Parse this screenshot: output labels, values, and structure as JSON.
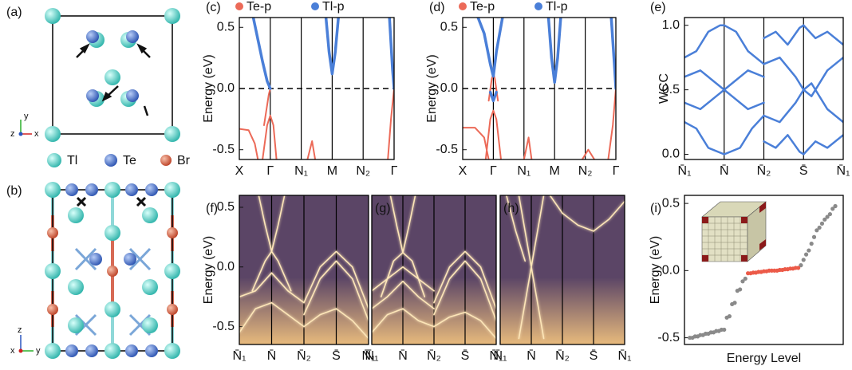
{
  "diagram": {
    "panel_a": {
      "label": "(a)",
      "axis_labels": [
        "y",
        "z",
        "x"
      ]
    },
    "species": [
      "Tl",
      "Te",
      "Br"
    ],
    "panel_b": {
      "label": "(b)",
      "axis_labels": [
        "z",
        "x",
        "y"
      ]
    }
  },
  "chart_data": [
    {
      "type": "line",
      "panel_label": "(c)",
      "ylabel": "Energy (eV)",
      "legend": "top",
      "xlim": [
        0,
        5
      ],
      "ylim": [
        -0.58,
        0.58
      ],
      "xticks": [
        {
          "value": 0,
          "label": "X"
        },
        {
          "value": 1,
          "label": "Γ"
        },
        {
          "value": 2,
          "label": "N₁"
        },
        {
          "value": 3,
          "label": "M"
        },
        {
          "value": 4,
          "label": "N₂"
        },
        {
          "value": 5,
          "label": "Γ"
        }
      ],
      "yticks": [
        0.5,
        {
          "value": 0,
          "label": "0.0"
        },
        -0.5
      ],
      "tick_lines": true,
      "fermi_level": 0,
      "series": [
        {
          "name": "Te-p",
          "color": "#ec6a58",
          "width": 2,
          "x": [
            0,
            0.3,
            0.5,
            0.6,
            null,
            0.75,
            0.9,
            1.0,
            1.1,
            1.2,
            null,
            0.8,
            0.95,
            1.0,
            null,
            2.2,
            2.35,
            2.45,
            null,
            4.8,
            4.9,
            5.0
          ],
          "values": [
            -0.33,
            -0.34,
            -0.45,
            -0.58,
            null,
            -0.58,
            -0.3,
            -0.22,
            -0.3,
            -0.58,
            null,
            -0.3,
            -0.05,
            0,
            null,
            -0.58,
            -0.43,
            -0.58,
            null,
            -0.58,
            -0.25,
            0
          ]
        },
        {
          "name": "Tl-p",
          "color": "#4a7fd8",
          "width": 3.5,
          "x": [
            0.45,
            0.6,
            0.75,
            0.9,
            1.0,
            null,
            2.8,
            2.9,
            3.0,
            3.1,
            3.2,
            null,
            4.85,
            4.95,
            5.0
          ],
          "values": [
            0.58,
            0.4,
            0.22,
            0.06,
            0,
            null,
            0.58,
            0.3,
            0.12,
            0.3,
            0.58,
            null,
            0.58,
            0.15,
            0
          ]
        }
      ]
    },
    {
      "type": "line",
      "panel_label": "(d)",
      "ylabel": "Energy (eV)",
      "legend": "top",
      "xlim": [
        0,
        5
      ],
      "ylim": [
        -0.58,
        0.58
      ],
      "xticks": [
        {
          "value": 0,
          "label": "X"
        },
        {
          "value": 1,
          "label": "Γ"
        },
        {
          "value": 2,
          "label": "N₁"
        },
        {
          "value": 3,
          "label": "M"
        },
        {
          "value": 4,
          "label": "N₂"
        },
        {
          "value": 5,
          "label": "Γ"
        }
      ],
      "yticks": [
        0.5,
        {
          "value": 0,
          "label": "0.0"
        },
        -0.5
      ],
      "tick_lines": true,
      "fermi_level": 0,
      "series": [
        {
          "name": "Te-p",
          "color": "#ec6a58",
          "width": 2,
          "x": [
            0,
            0.4,
            0.7,
            0.85,
            null,
            0.75,
            0.9,
            1.0,
            1.1,
            1.25,
            null,
            0.85,
            0.95,
            1.0,
            1.05,
            1.15,
            null,
            2.0,
            2.15,
            2.25,
            null,
            3.9,
            4.1,
            4.3,
            null,
            4.75,
            4.9,
            5.0
          ],
          "values": [
            -0.32,
            -0.32,
            -0.4,
            -0.58,
            null,
            -0.58,
            -0.25,
            -0.18,
            -0.25,
            -0.58,
            null,
            -0.1,
            0.08,
            0.12,
            0.08,
            -0.1,
            null,
            -0.58,
            -0.4,
            -0.58,
            null,
            -0.58,
            -0.5,
            -0.58,
            null,
            -0.58,
            -0.3,
            0
          ]
        },
        {
          "name": "Tl-p",
          "color": "#4a7fd8",
          "width": 3.5,
          "x": [
            0.5,
            0.7,
            0.9,
            1.0,
            1.1,
            1.3,
            null,
            0.9,
            1.0,
            1.1,
            null,
            2.8,
            2.9,
            3.0,
            3.1,
            3.2,
            null,
            4.85,
            4.95,
            5.0
          ],
          "values": [
            0.58,
            0.45,
            0.2,
            0.1,
            0.3,
            0.58,
            null,
            -0.03,
            -0.1,
            -0.03,
            null,
            0.58,
            0.25,
            0.05,
            0.25,
            0.58,
            null,
            0.58,
            0.2,
            0
          ]
        }
      ]
    },
    {
      "type": "line",
      "panel_label": "(e)",
      "ylabel": "WCC",
      "xlim": [
        0,
        4
      ],
      "ylim": [
        -0.04,
        1.06
      ],
      "xticks": [
        {
          "value": 0,
          "label": "N̄₁"
        },
        {
          "value": 1,
          "label": "N̄"
        },
        {
          "value": 2,
          "label": "N̄₂"
        },
        {
          "value": 3,
          "label": "S̄"
        },
        {
          "value": 4,
          "label": "N̄₁"
        }
      ],
      "yticks": [
        {
          "value": 1,
          "label": "1.0"
        },
        0.5,
        {
          "value": 0,
          "label": "0.0"
        }
      ],
      "tick_lines": true,
      "color": "#4a7fd8",
      "width": 2.5,
      "x": [
        0,
        0.3,
        0.6,
        0.9,
        1.0,
        1.3,
        1.6,
        2.0,
        null,
        0,
        0.3,
        0.6,
        1.0,
        1.4,
        1.7,
        2.0,
        null,
        0,
        0.4,
        0.8,
        1.0,
        1.2,
        1.6,
        2.0,
        null,
        0,
        0.4,
        0.8,
        1.0,
        1.2,
        1.6,
        2.0,
        null,
        2,
        2.4,
        2.8,
        3.0,
        3.2,
        3.6,
        4.0,
        null,
        2,
        2.4,
        2.8,
        3.0,
        3.2,
        3.6,
        4.0,
        null,
        2,
        2.3,
        2.6,
        2.9,
        3.0,
        3.3,
        3.6,
        4.0,
        null,
        2,
        2.3,
        2.6,
        2.9,
        3.0,
        3.3,
        3.6,
        4.0
      ],
      "values": [
        0.75,
        0.8,
        0.95,
        1.0,
        1.0,
        0.95,
        0.8,
        0.7,
        null,
        0.25,
        0.2,
        0.05,
        0,
        0.05,
        0.2,
        0.3,
        null,
        0.6,
        0.65,
        0.55,
        0.5,
        0.45,
        0.35,
        0.4,
        null,
        0.4,
        0.35,
        0.45,
        0.5,
        0.55,
        0.65,
        0.6,
        null,
        0.7,
        0.75,
        0.6,
        0.5,
        0.45,
        0.65,
        0.75,
        null,
        0.3,
        0.25,
        0.4,
        0.5,
        0.55,
        0.35,
        0.25,
        null,
        0.9,
        0.95,
        0.85,
        0.98,
        1.0,
        0.9,
        0.95,
        0.85,
        null,
        0.1,
        0.05,
        0.15,
        0.02,
        0,
        0.1,
        0.05,
        0.15
      ]
    },
    {
      "type": "line",
      "panel_label": "(f)",
      "ylabel": "Energy (eV)",
      "background": "#5b4566",
      "xlim": [
        0,
        4
      ],
      "ylim": [
        -0.65,
        0.6
      ],
      "xticks": [
        {
          "value": 0,
          "label": "N̄₁"
        },
        {
          "value": 1,
          "label": "N̄"
        },
        {
          "value": 2,
          "label": "N̄₂"
        },
        {
          "value": 3,
          "label": "S̄"
        },
        {
          "value": 4,
          "label": "N̄₁"
        }
      ],
      "yticks": [
        0.5,
        {
          "value": 0,
          "label": "0.0"
        },
        -0.5
      ],
      "tick_lines": true,
      "color": "#fde6b8",
      "width": 1.6,
      "x": [
        0.4,
        0.8,
        1.0,
        1.2,
        1.6,
        null,
        0,
        0.5,
        1.0,
        1.5,
        2.0,
        null,
        2.0,
        2.5,
        3.0,
        3.5,
        4.0,
        null,
        2.0,
        2.5,
        3.0,
        3.5,
        4.0,
        null,
        0.6,
        0.8,
        1.0,
        1.2,
        1.4,
        null,
        0,
        0.5,
        1,
        1.5,
        2,
        2.5,
        3,
        3.5,
        4
      ],
      "values": [
        -0.2,
        0.05,
        0.13,
        0.05,
        -0.2,
        null,
        -0.25,
        -0.2,
        -0.05,
        -0.2,
        -0.3,
        null,
        -0.3,
        0,
        0.13,
        0,
        -0.35,
        null,
        -0.4,
        -0.1,
        0.05,
        -0.1,
        -0.45,
        null,
        0.6,
        0.35,
        0.13,
        0.35,
        0.6,
        null,
        -0.55,
        -0.35,
        -0.3,
        -0.4,
        -0.5,
        -0.4,
        -0.35,
        -0.45,
        -0.6
      ]
    },
    {
      "type": "line",
      "panel_label": "(g)",
      "background": "#5b4566",
      "xlim": [
        0,
        4
      ],
      "ylim": [
        -0.65,
        0.6
      ],
      "xticks": [
        {
          "value": 0,
          "label": "N̄₁"
        },
        {
          "value": 1,
          "label": "N̄"
        },
        {
          "value": 2,
          "label": "N̄₂"
        },
        {
          "value": 3,
          "label": "S̄"
        },
        {
          "value": 4,
          "label": "N̄₁"
        }
      ],
      "tick_lines": true,
      "color": "#fde6b8",
      "width": 1.6,
      "x": [
        0.3,
        0.7,
        1.0,
        1.3,
        1.7,
        null,
        0,
        0.5,
        1.0,
        1.5,
        2.0,
        null,
        0,
        0.5,
        1.0,
        1.5,
        2.0,
        null,
        2.0,
        2.5,
        3.0,
        3.5,
        4.0,
        null,
        2.0,
        2.5,
        3.0,
        3.5,
        4.0,
        null,
        0.6,
        0.8,
        1.0,
        1.2,
        1.4,
        null,
        0,
        0.5,
        1,
        1.5,
        2,
        2.5,
        3,
        3.5,
        4
      ],
      "values": [
        -0.25,
        0.05,
        0.12,
        0.05,
        -0.25,
        null,
        -0.2,
        -0.1,
        0.0,
        -0.1,
        -0.2,
        null,
        -0.35,
        -0.25,
        -0.12,
        -0.25,
        -0.35,
        null,
        -0.3,
        0,
        0.13,
        0,
        -0.35,
        null,
        -0.4,
        -0.1,
        0.05,
        -0.1,
        -0.45,
        null,
        0.6,
        0.35,
        0.12,
        0.35,
        0.6,
        null,
        -0.55,
        -0.4,
        -0.35,
        -0.45,
        -0.5,
        -0.42,
        -0.38,
        -0.45,
        -0.6
      ]
    },
    {
      "type": "line",
      "panel_label": "(h)",
      "background": "#5b4566",
      "xlim": [
        0,
        4
      ],
      "ylim": [
        -0.65,
        0.6
      ],
      "xticks": [
        {
          "value": 0,
          "label": "N̄₁"
        },
        {
          "value": 1,
          "label": "N̄"
        },
        {
          "value": 2,
          "label": "N̄₂"
        },
        {
          "value": 3,
          "label": "S̄"
        },
        {
          "value": 4,
          "label": "N̄₁"
        }
      ],
      "tick_lines": true,
      "color": "#fde6b8",
      "width": 1.6,
      "x": [
        0.6,
        1.0,
        1.4,
        null,
        0.6,
        1.0,
        1.4,
        null,
        1.6,
        2.0,
        2.5,
        3.0,
        3.5,
        4.0,
        null,
        0.2,
        0.5,
        0.8
      ],
      "values": [
        0.6,
        0,
        -0.6,
        null,
        -0.6,
        0,
        0.6,
        null,
        0.6,
        0.45,
        0.35,
        0.3,
        0.4,
        0.55,
        null,
        0.6,
        0.3,
        0.05
      ]
    },
    {
      "type": "scatter",
      "panel_label": "(i)",
      "ylabel": "Energy (eV)",
      "xlabel": "Energy Level",
      "xlim": [
        -2,
        58
      ],
      "ylim": [
        -0.55,
        0.56
      ],
      "yticks": [
        0.5,
        {
          "value": 0,
          "label": "0.0"
        },
        -0.5
      ],
      "series": [
        {
          "color": "#8a8a8a",
          "x": [
            0,
            1,
            2,
            3,
            4,
            5,
            6,
            7,
            8,
            9,
            10,
            11,
            12,
            13,
            14,
            15,
            16,
            17,
            18,
            19,
            20,
            21,
            42,
            43,
            44,
            45,
            46,
            47,
            48,
            49,
            50,
            51,
            52,
            53,
            54,
            55
          ],
          "values": [
            -0.5,
            -0.5,
            -0.49,
            -0.49,
            -0.48,
            -0.48,
            -0.47,
            -0.47,
            -0.46,
            -0.46,
            -0.45,
            -0.45,
            -0.44,
            -0.44,
            -0.35,
            -0.34,
            -0.25,
            -0.24,
            -0.15,
            -0.14,
            -0.08,
            -0.06,
            0.04,
            0.08,
            0.12,
            0.15,
            0.2,
            0.25,
            0.3,
            0.32,
            0.35,
            0.38,
            0.4,
            0.42,
            0.46,
            0.48
          ]
        },
        {
          "color": "#ec5a48",
          "x": [
            22,
            23,
            24,
            25,
            26,
            27,
            28,
            29,
            30,
            31,
            32,
            33,
            34,
            35,
            36,
            37,
            38,
            39,
            40,
            41
          ],
          "values": [
            -0.02,
            -0.02,
            -0.015,
            -0.015,
            -0.01,
            -0.01,
            -0.005,
            -0.005,
            0,
            0,
            0,
            0,
            0.005,
            0.005,
            0.01,
            0.01,
            0.015,
            0.015,
            0.02,
            0.02
          ]
        }
      ]
    }
  ]
}
